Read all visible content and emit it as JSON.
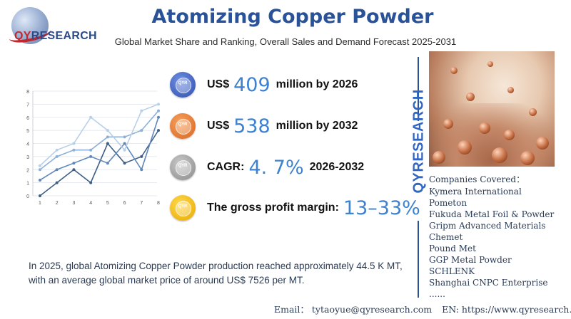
{
  "logo": {
    "brand_highlight": "QY",
    "brand_rest": "RESEARCH"
  },
  "header": {
    "title": "Atomizing Copper Powder",
    "subtitle": "Global Market Share and Ranking, Overall Sales and Demand Forecast 2025-2031"
  },
  "chart_data": {
    "type": "line",
    "x": [
      1,
      2,
      3,
      4,
      5,
      6,
      7,
      8
    ],
    "ylim": [
      0,
      8
    ],
    "yticks": [
      0,
      1,
      2,
      3,
      4,
      5,
      6,
      7,
      8
    ],
    "xticks": [
      1,
      2,
      3,
      4,
      5,
      6,
      7,
      8
    ],
    "series": [
      {
        "values": [
          0,
          1,
          2,
          1,
          4,
          2.5,
          3,
          5
        ],
        "color": "#3e5f85"
      },
      {
        "values": [
          1.2,
          2,
          2.5,
          3,
          2.5,
          4,
          2,
          6
        ],
        "color": "#5f87b8"
      },
      {
        "values": [
          2,
          3,
          3.5,
          3.5,
          4.5,
          4.5,
          5,
          6.5
        ],
        "color": "#8db0d8"
      },
      {
        "values": [
          2.3,
          3.5,
          4,
          6,
          5,
          3.5,
          6.5,
          7
        ],
        "color": "#b8cfe8"
      }
    ]
  },
  "stats": [
    {
      "label": "US$",
      "value": "409",
      "suffix": "million by 2026",
      "icon": "qyresearch-globe-icon",
      "color": "#2f4fb0"
    },
    {
      "label": "US$",
      "value": "538",
      "suffix": "million by 2032",
      "icon": "qyresearch-globe-icon",
      "color": "#d9651e"
    },
    {
      "label": "CAGR:",
      "value": "4. 7%",
      "suffix": "2026-2032",
      "icon": "qyresearch-globe-icon",
      "color": "#8a8a8a"
    },
    {
      "label": "The gross profit margin:",
      "value": "13–33%",
      "suffix": "",
      "icon": "qyresearch-globe-icon",
      "color": "#e8a800"
    }
  ],
  "stat_icon_text": "QYR",
  "summary": "In 2025, global Atomizing Copper Powder production reached approximately 44.5 K MT, with an average global market price of around US$ 7526 per MT.",
  "vertical_brand": "QYRESEARCH",
  "companies": {
    "heading": "Companies Covered：",
    "items": [
      "Kymera International",
      "Pometon",
      "Fukuda Metal Foil & Powder",
      "Gripm Advanced Materials",
      "Chemet",
      "Pound Met",
      "GGP Metal Powder",
      "SCHLENK",
      "Shanghai CNPC Enterprise",
      "......"
    ]
  },
  "footer": {
    "email": "Email： tytaoyue@qyresearch.com",
    "website": "EN: https://www.qyresearch.com"
  }
}
